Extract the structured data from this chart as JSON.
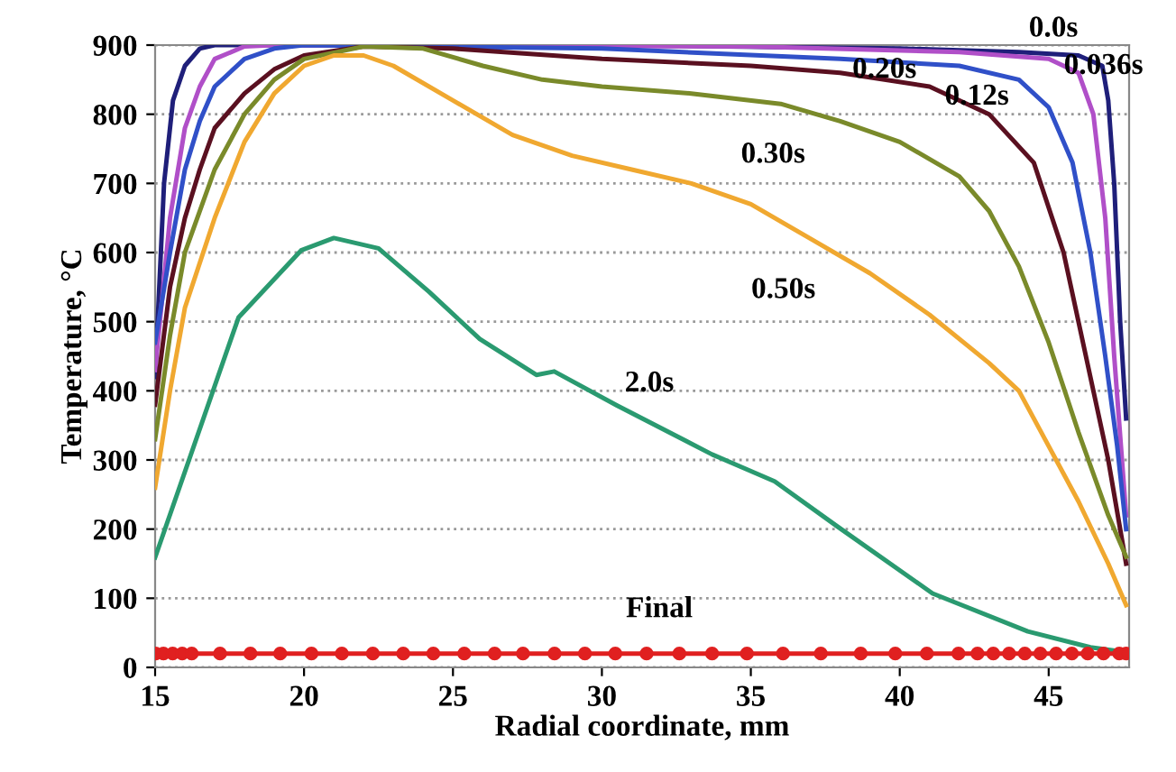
{
  "chart_data": {
    "type": "line",
    "xlabel": "Radial coordinate, mm",
    "ylabel": "Temperature, °C",
    "xlim": [
      15,
      47.7
    ],
    "ylim": [
      0,
      900
    ],
    "xticks": [
      15,
      20,
      25,
      30,
      35,
      40,
      45
    ],
    "yticks": [
      0,
      100,
      200,
      300,
      400,
      500,
      600,
      700,
      800,
      900
    ],
    "grid": "y",
    "marker": "none",
    "series": [
      {
        "name": "0.0s",
        "color": "#1f1f7a",
        "x": [
          15,
          15.3,
          15.6,
          16,
          16.5,
          17,
          20,
          30,
          40,
          44,
          46,
          46.8,
          47.0,
          47.2,
          47.4,
          47.6
        ],
        "values": [
          420,
          700,
          820,
          870,
          895,
          900,
          900,
          900,
          895,
          890,
          885,
          870,
          820,
          700,
          500,
          360
        ]
      },
      {
        "name": "0.036s",
        "color": "#b04fc8",
        "x": [
          15,
          15.5,
          16,
          16.5,
          17,
          18,
          19,
          35,
          42,
          45,
          46,
          46.5,
          46.9,
          47.2,
          47.6
        ],
        "values": [
          430,
          650,
          780,
          840,
          880,
          898,
          900,
          898,
          890,
          880,
          860,
          800,
          650,
          450,
          220
        ]
      },
      {
        "name": "0.12s",
        "color": "#3050c8",
        "x": [
          15,
          15.5,
          16,
          16.5,
          17,
          18,
          19,
          20,
          30,
          38,
          42,
          44,
          45,
          45.8,
          46.4,
          46.9,
          47.3,
          47.6
        ],
        "values": [
          470,
          600,
          720,
          790,
          840,
          880,
          895,
          900,
          895,
          880,
          870,
          850,
          810,
          730,
          600,
          450,
          320,
          200
        ]
      },
      {
        "name": "0.20s",
        "color": "#5a1020",
        "x": [
          15,
          15.5,
          16,
          16.5,
          17,
          18,
          19,
          20,
          22,
          25,
          30,
          35,
          38,
          41,
          43,
          44.5,
          45.5,
          46.5,
          47,
          47.6
        ],
        "values": [
          380,
          550,
          650,
          720,
          780,
          830,
          865,
          885,
          898,
          895,
          880,
          870,
          860,
          840,
          800,
          730,
          600,
          400,
          300,
          150
        ]
      },
      {
        "name": "0.30s",
        "color": "#7a8a2a",
        "x": [
          15,
          15.5,
          16,
          17,
          18,
          19,
          20,
          22,
          24,
          26,
          28,
          30,
          33,
          36,
          38,
          40,
          42,
          43,
          44,
          45,
          46,
          47,
          47.6
        ],
        "values": [
          330,
          480,
          600,
          720,
          800,
          850,
          880,
          898,
          895,
          870,
          850,
          840,
          830,
          815,
          790,
          760,
          710,
          660,
          580,
          470,
          340,
          220,
          160
        ]
      },
      {
        "name": "0.50s",
        "color": "#f0a830",
        "x": [
          15,
          15.5,
          16,
          17,
          18,
          19,
          20,
          21,
          22,
          23,
          25,
          27,
          29,
          31,
          33,
          35,
          37,
          39,
          41,
          43,
          44,
          45,
          46,
          47,
          47.6
        ],
        "values": [
          260,
          400,
          520,
          650,
          760,
          830,
          870,
          885,
          885,
          870,
          820,
          770,
          740,
          720,
          700,
          670,
          620,
          570,
          510,
          440,
          400,
          320,
          240,
          150,
          90
        ]
      },
      {
        "name": "2.0s",
        "color": "#2a9a70",
        "x": [
          15,
          17.8,
          19.9,
          21,
          22.5,
          24.2,
          25.9,
          27.8,
          28.4,
          30.5,
          33.7,
          35.8,
          37.9,
          41.1,
          44.3,
          46.4,
          47.6
        ],
        "values": [
          159,
          506,
          603,
          621,
          606,
          543,
          475,
          423,
          428,
          379,
          308,
          269,
          204,
          107,
          52,
          29,
          22
        ]
      },
      {
        "name": "Final",
        "color": "#e02020",
        "marker": "circle",
        "x": [
          15.02,
          15.28,
          15.59,
          15.91,
          16.23,
          17.18,
          18.2,
          19.2,
          20.25,
          21.27,
          22.31,
          23.33,
          24.34,
          25.38,
          26.4,
          27.35,
          28.41,
          29.43,
          30.45,
          31.5,
          32.6,
          33.7,
          34.87,
          36.08,
          37.35,
          38.69,
          39.85,
          40.91,
          41.97,
          42.61,
          43.14,
          43.67,
          44.2,
          44.72,
          45.25,
          45.78,
          46.31,
          46.84,
          47.37,
          47.6
        ],
        "values": [
          20,
          20,
          20,
          20,
          20,
          20,
          20,
          20,
          20,
          20,
          20,
          20,
          20,
          20,
          20,
          20,
          20,
          20,
          20,
          20,
          20,
          20,
          20,
          20,
          20,
          20,
          20,
          20,
          20,
          20,
          20,
          20,
          20,
          20,
          20,
          20,
          20,
          20,
          20,
          20
        ]
      }
    ]
  }
}
